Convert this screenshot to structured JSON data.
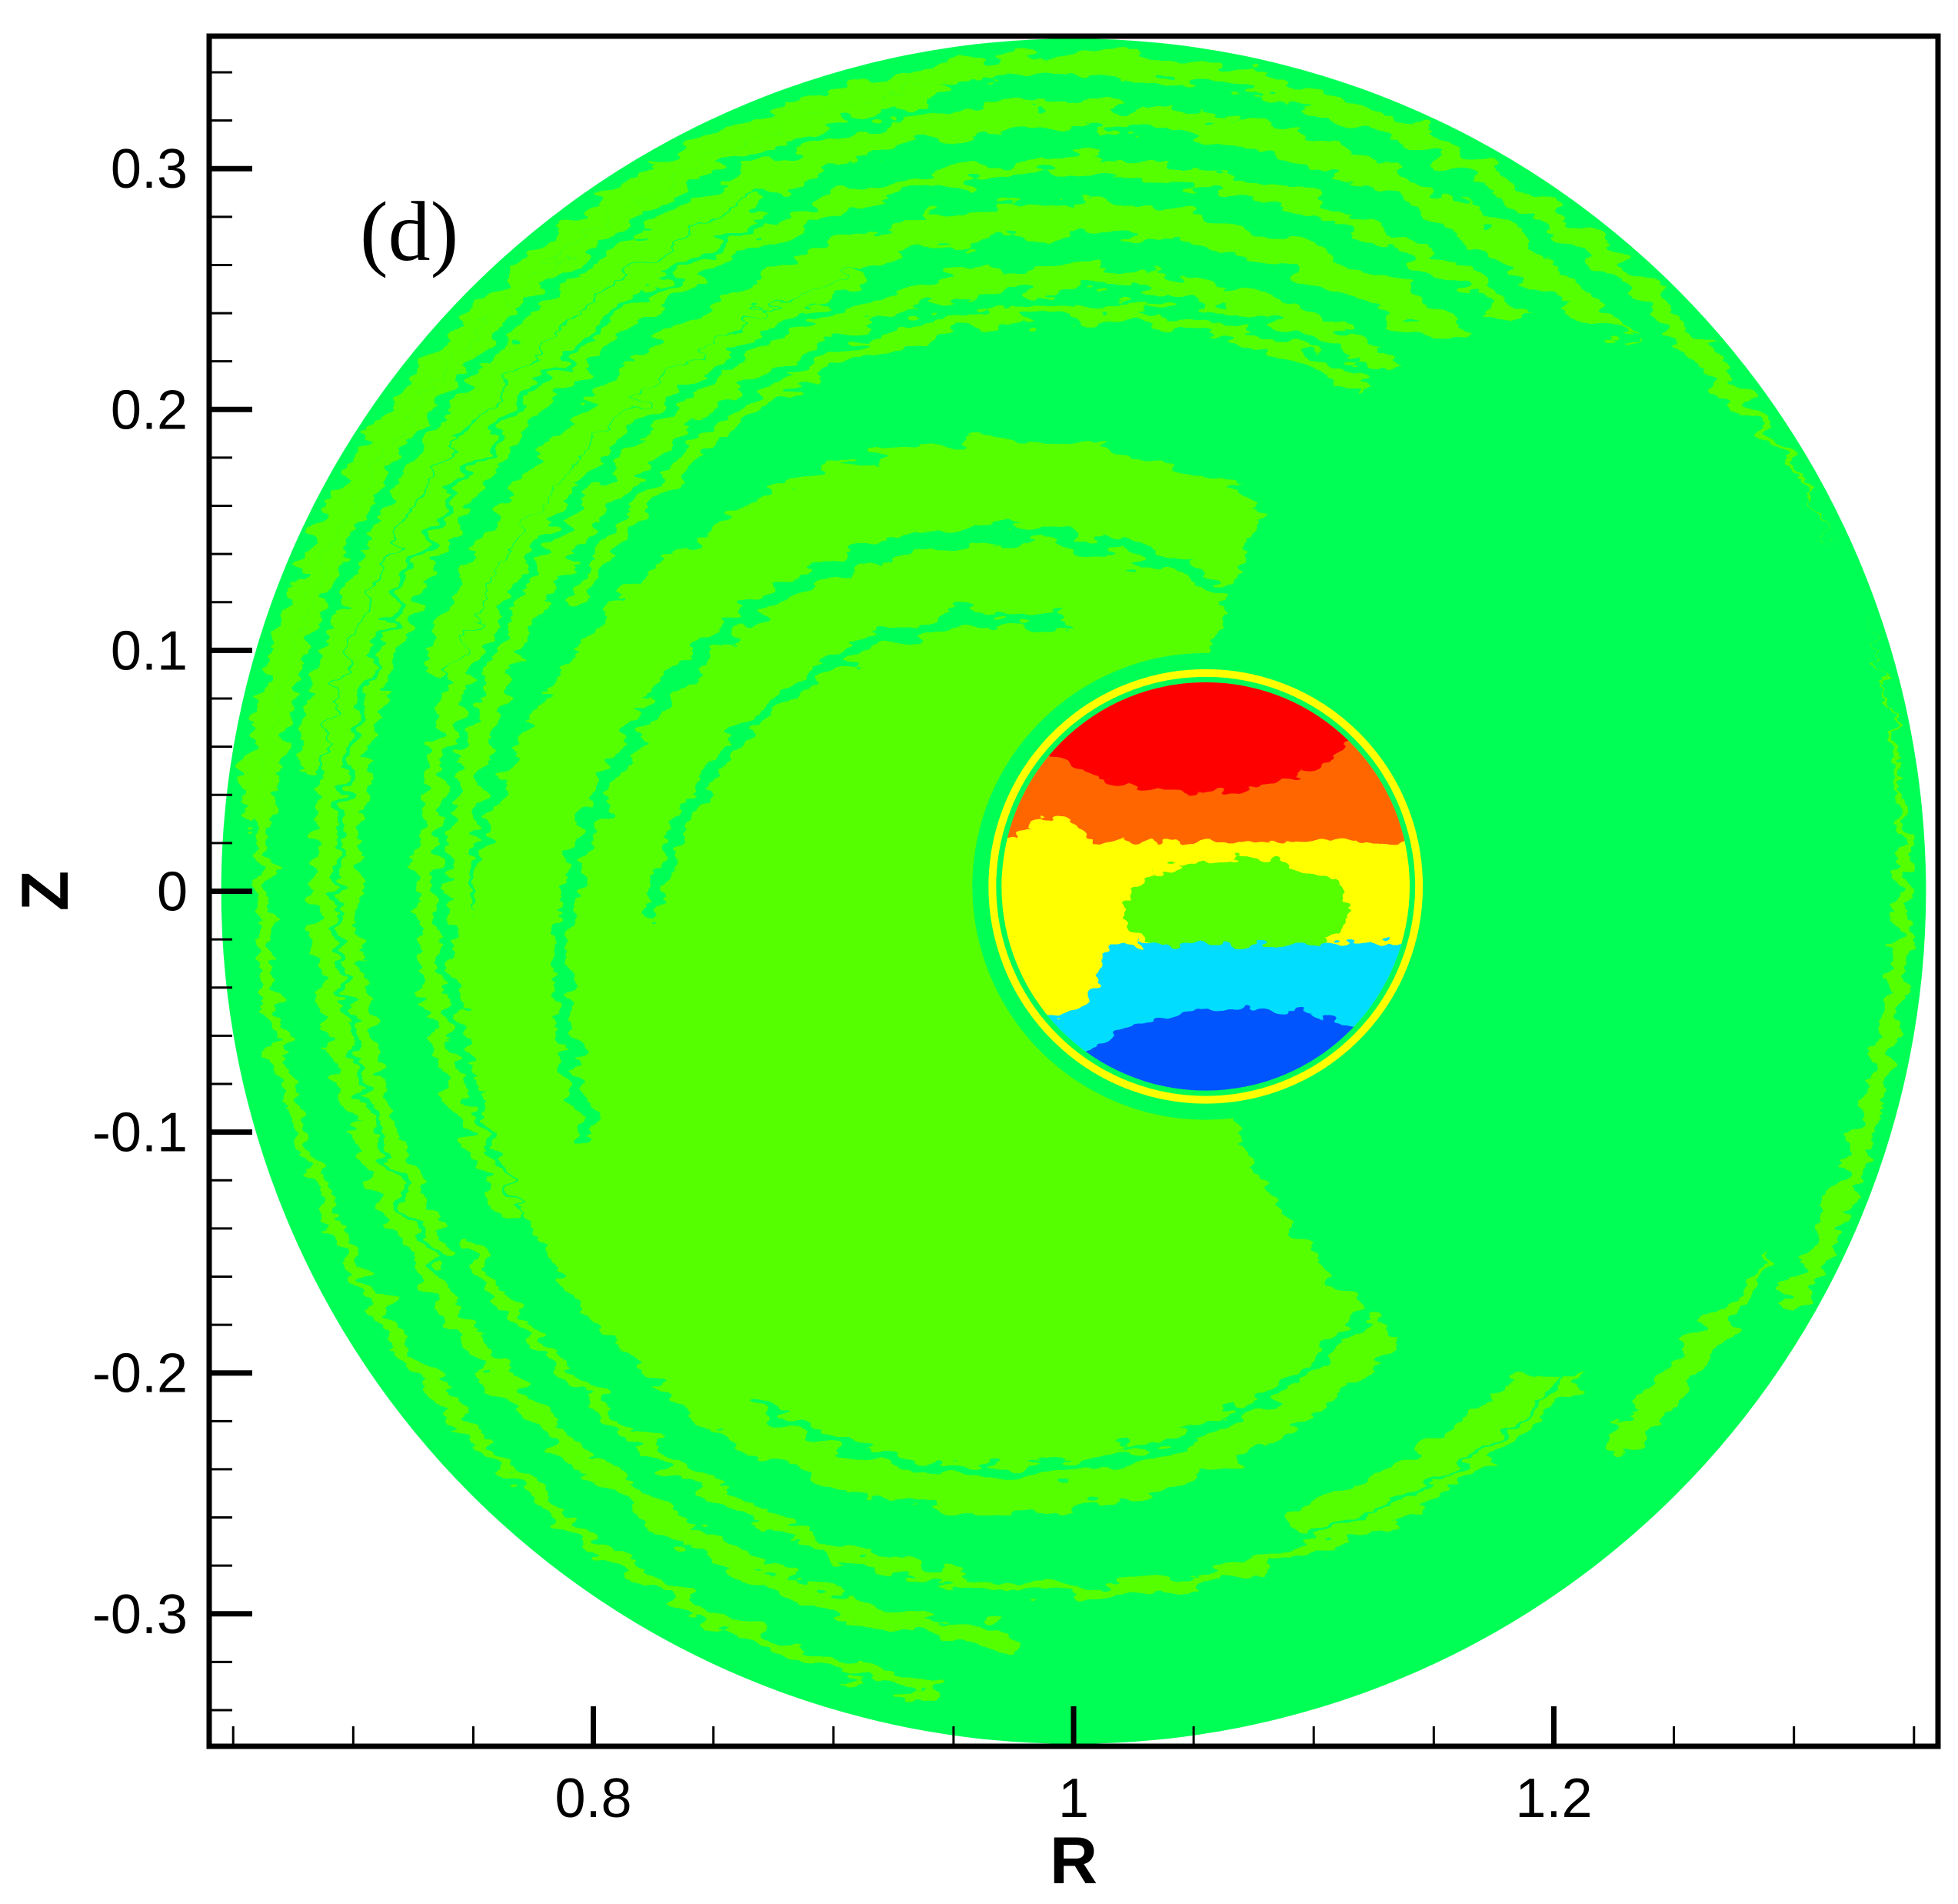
{
  "chart_data": {
    "type": "heatmap",
    "panel_label": "(d)",
    "xlabel": "R",
    "ylabel": "Z",
    "xlim": [
      0.64,
      1.36
    ],
    "ylim": [
      -0.355,
      0.355
    ],
    "x_ticks": [
      {
        "value": 0.8,
        "label": "0.8"
      },
      {
        "value": 1.0,
        "label": "1"
      },
      {
        "value": 1.2,
        "label": "1.2"
      }
    ],
    "y_ticks": [
      {
        "value": 0.3,
        "label": "0.3"
      },
      {
        "value": 0.2,
        "label": "0.2"
      },
      {
        "value": 0.1,
        "label": "0.1"
      },
      {
        "value": 0.0,
        "label": "0"
      },
      {
        "value": -0.1,
        "label": "-0.1"
      },
      {
        "value": -0.2,
        "label": "-0.2"
      },
      {
        "value": -0.3,
        "label": "-0.3"
      }
    ],
    "x_minor_step": 0.05,
    "y_minor_step": 0.02,
    "domain": {
      "center_r": 1.0,
      "center_z": 0.0,
      "radius": 0.355
    },
    "island": {
      "center_r": 1.055,
      "center_z": 0.002,
      "radius": 0.085
    },
    "colors": {
      "background_green": "#00ff55",
      "lime": "#55ff00",
      "yellow": "#ffff00",
      "orange": "#ff6600",
      "red": "#ff0000",
      "cyan": "#00ddff",
      "blue": "#0055ff",
      "frame": "#000000"
    },
    "grid": false,
    "legend": "none"
  }
}
